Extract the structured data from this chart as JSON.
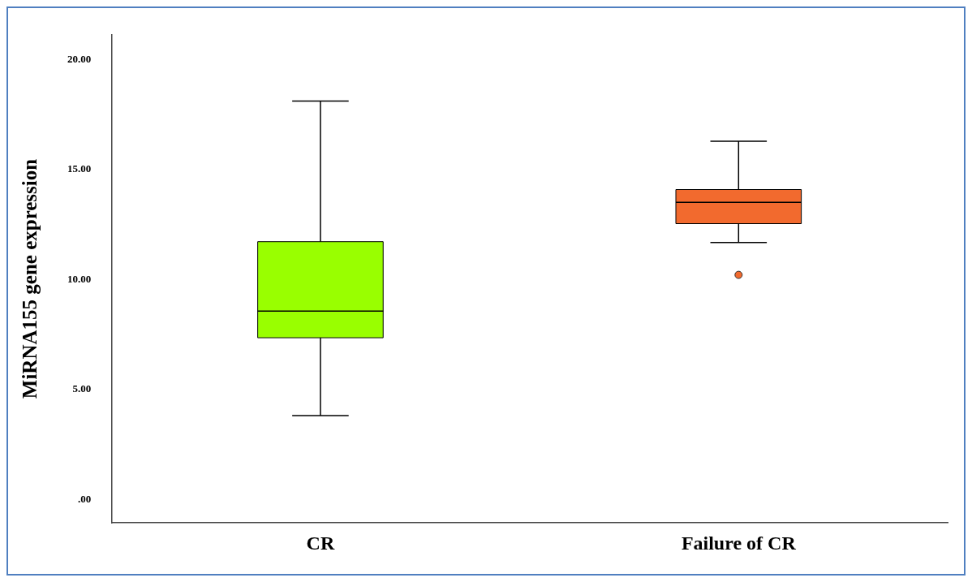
{
  "chart_data": {
    "type": "box",
    "ylabel": "MiRNA155 gene expression",
    "categories": [
      "CR",
      "Failure of CR"
    ],
    "colors": [
      "#99ff00",
      "#f26a2e"
    ],
    "boxes": [
      {
        "low": 3.81,
        "q1": 7.35,
        "median": 8.56,
        "q3": 11.72,
        "high": 18.11
      },
      {
        "low": 11.68,
        "q1": 12.54,
        "median": 13.51,
        "q3": 14.09,
        "high": 16.29,
        "outliers": [
          10.21
        ]
      }
    ],
    "ylim": [
      -1.07,
      21.13
    ],
    "yticks": [
      {
        "value": 0,
        "label": ".00"
      },
      {
        "value": 5,
        "label": "5.00"
      },
      {
        "value": 10,
        "label": "10.00"
      },
      {
        "value": 15,
        "label": "15.00"
      },
      {
        "value": 20,
        "label": "20.00"
      }
    ],
    "grid": false,
    "legend": false
  }
}
